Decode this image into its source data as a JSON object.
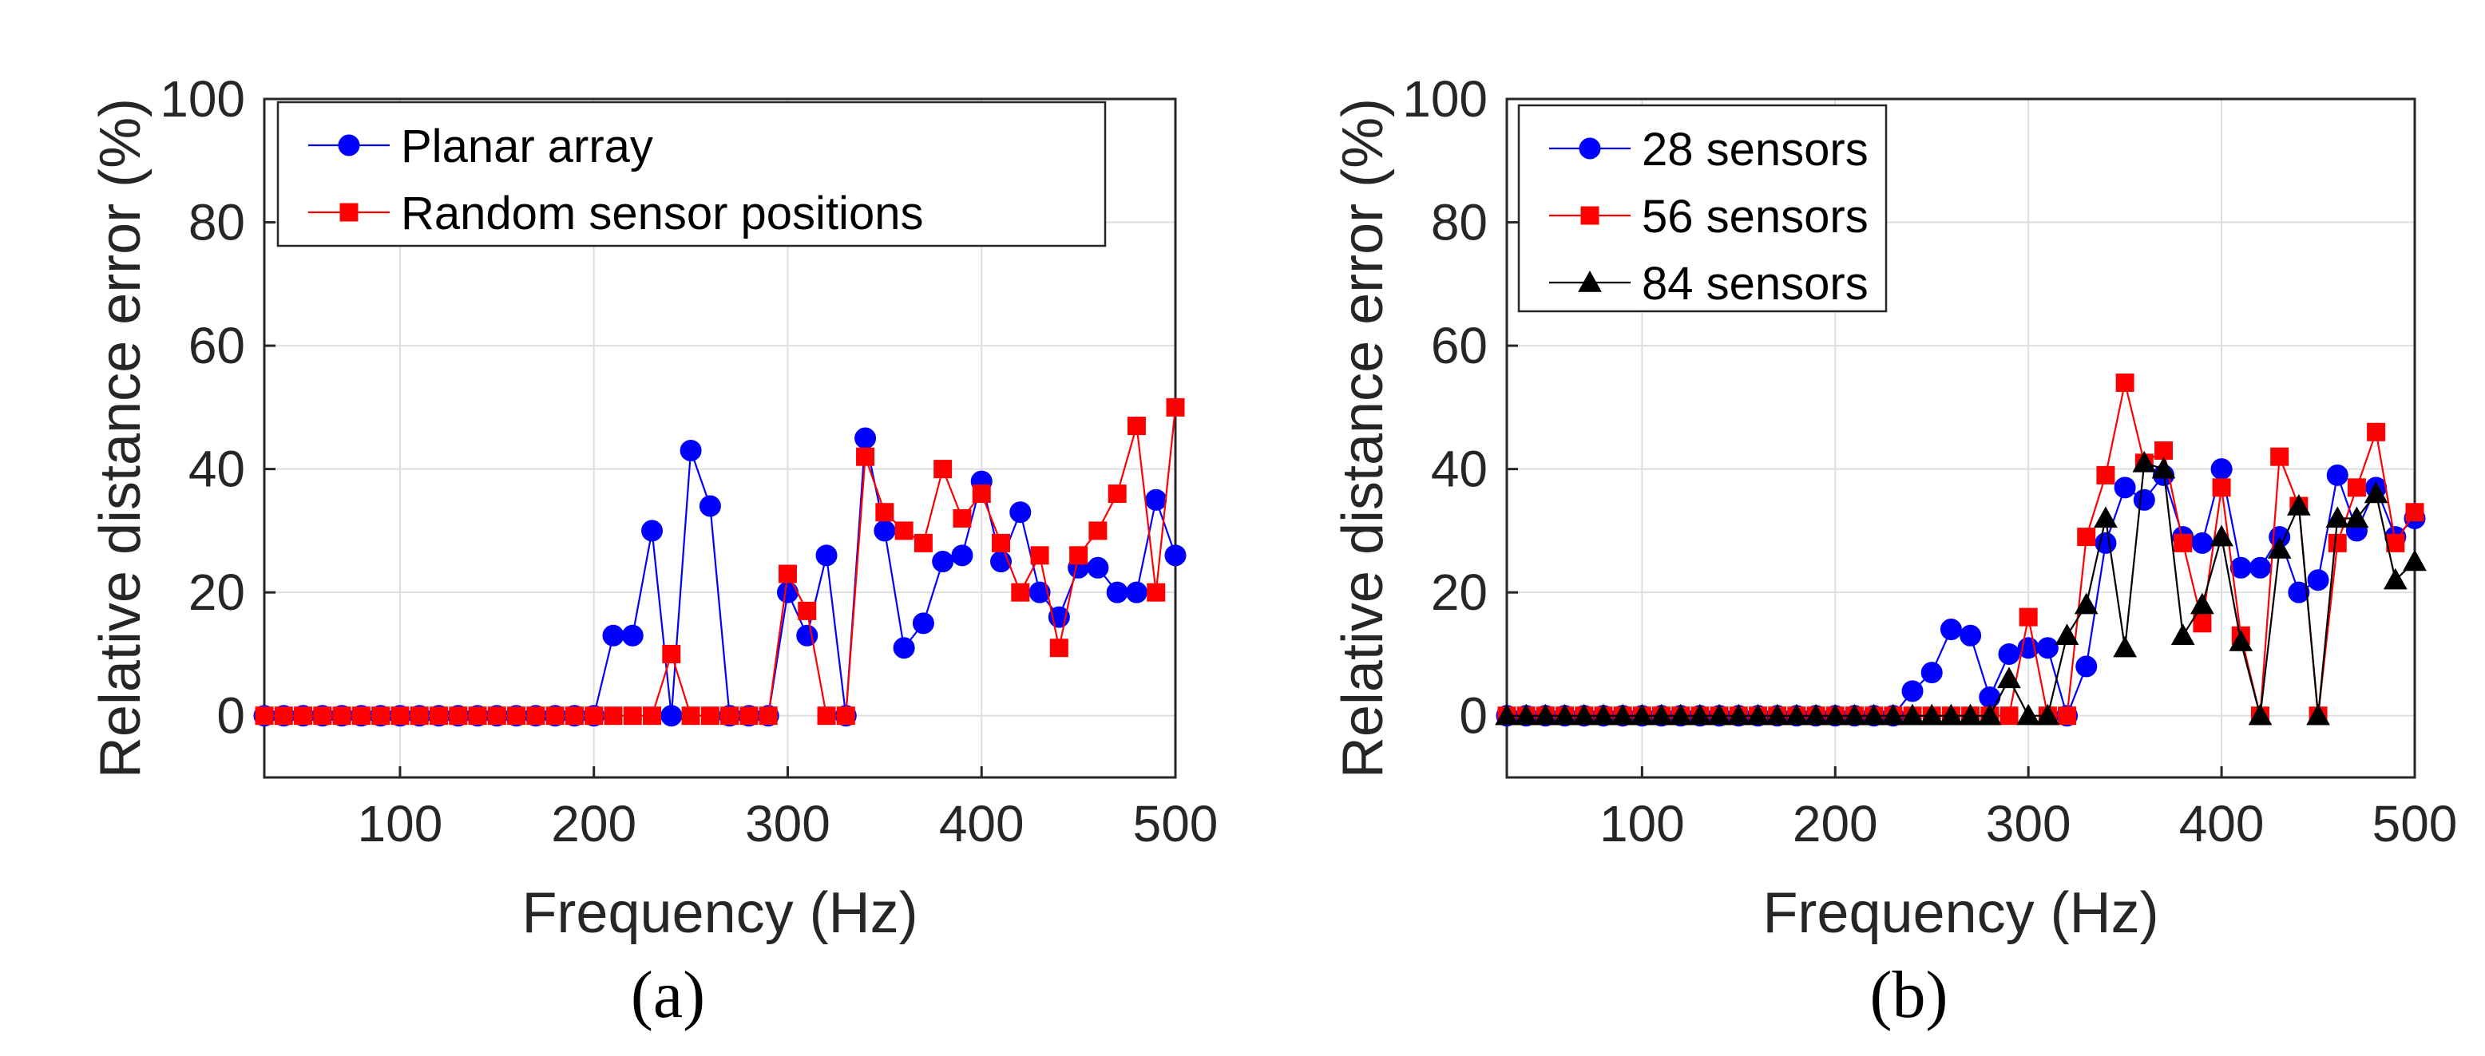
{
  "chart_data": [
    {
      "type": "line",
      "panel_label": "(a)",
      "xlabel": "Frequency (Hz)",
      "ylabel": "Relative distance error (%)",
      "xlim": [
        30,
        500
      ],
      "ylim": [
        -10,
        100
      ],
      "xticks": [
        100,
        200,
        300,
        400,
        500
      ],
      "yticks": [
        0,
        20,
        40,
        60,
        80,
        100
      ],
      "grid": true,
      "legend_position": "top-left",
      "x": [
        30,
        40,
        50,
        60,
        70,
        80,
        90,
        100,
        110,
        120,
        130,
        140,
        150,
        160,
        170,
        180,
        190,
        200,
        210,
        220,
        230,
        240,
        250,
        260,
        270,
        280,
        290,
        300,
        310,
        320,
        330,
        340,
        350,
        360,
        370,
        380,
        390,
        400,
        410,
        420,
        430,
        440,
        450,
        460,
        470,
        480,
        490,
        500
      ],
      "series": [
        {
          "name": "Planar array",
          "color": "#0000ff",
          "marker": "circle",
          "values": [
            0,
            0,
            0,
            0,
            0,
            0,
            0,
            0,
            0,
            0,
            0,
            0,
            0,
            0,
            0,
            0,
            0,
            0,
            13,
            13,
            30,
            0,
            43,
            34,
            0,
            0,
            0,
            20,
            13,
            26,
            0,
            45,
            30,
            11,
            15,
            25,
            26,
            38,
            25,
            33,
            20,
            16,
            24,
            24,
            20,
            20,
            35,
            26
          ]
        },
        {
          "name": "Random sensor positions",
          "color": "#ff0000",
          "marker": "square",
          "values": [
            0,
            0,
            0,
            0,
            0,
            0,
            0,
            0,
            0,
            0,
            0,
            0,
            0,
            0,
            0,
            0,
            0,
            0,
            0,
            0,
            0,
            10,
            0,
            0,
            0,
            0,
            0,
            23,
            17,
            0,
            0,
            42,
            33,
            30,
            28,
            40,
            32,
            36,
            28,
            20,
            26,
            11,
            26,
            30,
            36,
            47,
            20,
            50
          ]
        }
      ]
    },
    {
      "type": "line",
      "panel_label": "(b)",
      "xlabel": "Frequency (Hz)",
      "ylabel": "Relative distance error (%)",
      "xlim": [
        30,
        500
      ],
      "ylim": [
        -10,
        100
      ],
      "xticks": [
        100,
        200,
        300,
        400,
        500
      ],
      "yticks": [
        0,
        20,
        40,
        60,
        80,
        100
      ],
      "grid": true,
      "legend_position": "top-left",
      "x": [
        30,
        40,
        50,
        60,
        70,
        80,
        90,
        100,
        110,
        120,
        130,
        140,
        150,
        160,
        170,
        180,
        190,
        200,
        210,
        220,
        230,
        240,
        250,
        260,
        270,
        280,
        290,
        300,
        310,
        320,
        330,
        340,
        350,
        360,
        370,
        380,
        390,
        400,
        410,
        420,
        430,
        440,
        450,
        460,
        470,
        480,
        490,
        500
      ],
      "series": [
        {
          "name": "28 sensors",
          "color": "#0000ff",
          "marker": "circle",
          "values": [
            0,
            0,
            0,
            0,
            0,
            0,
            0,
            0,
            0,
            0,
            0,
            0,
            0,
            0,
            0,
            0,
            0,
            0,
            0,
            0,
            0,
            4,
            7,
            14,
            13,
            3,
            10,
            11,
            11,
            0,
            8,
            28,
            37,
            35,
            39,
            29,
            28,
            40,
            24,
            24,
            29,
            20,
            22,
            39,
            30,
            37,
            29,
            32
          ]
        },
        {
          "name": "56 sensors",
          "color": "#ff0000",
          "marker": "square",
          "values": [
            0,
            0,
            0,
            0,
            0,
            0,
            0,
            0,
            0,
            0,
            0,
            0,
            0,
            0,
            0,
            0,
            0,
            0,
            0,
            0,
            0,
            0,
            0,
            0,
            0,
            0,
            0,
            16,
            0,
            0,
            29,
            39,
            54,
            41,
            43,
            28,
            15,
            37,
            13,
            0,
            42,
            34,
            0,
            28,
            37,
            46,
            28,
            33
          ]
        },
        {
          "name": "84 sensors",
          "color": "#000000",
          "marker": "triangle",
          "values": [
            0,
            0,
            0,
            0,
            0,
            0,
            0,
            0,
            0,
            0,
            0,
            0,
            0,
            0,
            0,
            0,
            0,
            0,
            0,
            0,
            0,
            0,
            0,
            0,
            0,
            0,
            6,
            0,
            0,
            13,
            18,
            32,
            11,
            41,
            40,
            13,
            18,
            29,
            12,
            0,
            27,
            34,
            0,
            32,
            32,
            36,
            22,
            25
          ]
        }
      ]
    }
  ]
}
